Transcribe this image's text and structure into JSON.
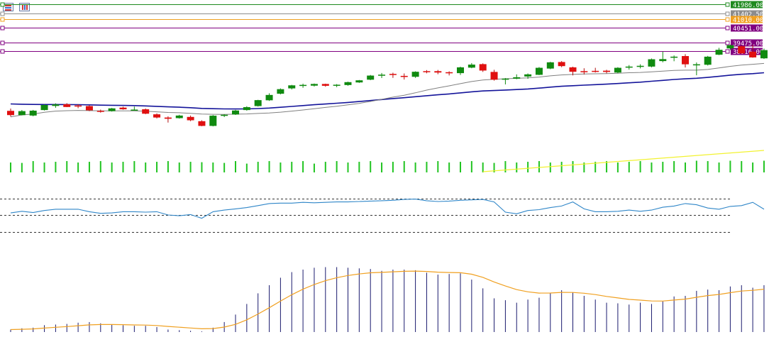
{
  "toolbar": {
    "icons": [
      "list-icon",
      "bars-icon"
    ]
  },
  "chart_data": {
    "type": "candlestick",
    "price_lines": [
      {
        "label": "41986.00",
        "value": 41986,
        "color": "#1e8a1e"
      },
      {
        "label": "41402.50",
        "value": 41402.5,
        "color": "#8c8c8c"
      },
      {
        "label": "41010.00",
        "value": 41010,
        "color": "#f0a020"
      },
      {
        "label": "40451.00",
        "value": 40451,
        "color": "#800080"
      },
      {
        "label": "39475.00",
        "value": 39475,
        "color": "#800080"
      },
      {
        "label": "38916.00",
        "value": 38916,
        "color": "#800080"
      }
    ],
    "candles": [
      [
        34998,
        35150,
        34620,
        34720
      ],
      [
        34720,
        35050,
        34700,
        34980
      ],
      [
        34690,
        35060,
        34640,
        35010
      ],
      [
        35050,
        35420,
        35020,
        35380
      ],
      [
        35320,
        35490,
        35200,
        35420
      ],
      [
        35430,
        35500,
        35240,
        35250
      ],
      [
        35350,
        35430,
        35170,
        35280
      ],
      [
        35310,
        35370,
        34980,
        35030
      ],
      [
        35000,
        35080,
        34880,
        34950
      ],
      [
        34980,
        35190,
        34950,
        35160
      ],
      [
        35210,
        35270,
        35070,
        35100
      ],
      [
        35080,
        35280,
        35020,
        35080
      ],
      [
        35100,
        35150,
        34780,
        34810
      ],
      [
        34770,
        34830,
        34500,
        34560
      ],
      [
        34560,
        34640,
        34230,
        34480
      ],
      [
        34520,
        34740,
        34490,
        34690
      ],
      [
        34600,
        34690,
        34320,
        34380
      ],
      [
        34320,
        34380,
        33990,
        34010
      ],
      [
        34010,
        34720,
        33980,
        34680
      ],
      [
        34690,
        34780,
        34590,
        34740
      ],
      [
        34760,
        35060,
        34730,
        35020
      ],
      [
        35050,
        35300,
        35010,
        35240
      ],
      [
        35310,
        35720,
        35280,
        35700
      ],
      [
        35690,
        36150,
        35650,
        36040
      ],
      [
        36120,
        36470,
        36080,
        36420
      ],
      [
        36470,
        36700,
        36400,
        36670
      ],
      [
        36640,
        36780,
        36510,
        36700
      ],
      [
        36650,
        36790,
        36590,
        36760
      ],
      [
        36760,
        36780,
        36580,
        36640
      ],
      [
        36640,
        36750,
        36550,
        36710
      ],
      [
        36690,
        36910,
        36640,
        36880
      ],
      [
        36860,
        37020,
        36830,
        37000
      ],
      [
        37040,
        37350,
        37010,
        37310
      ],
      [
        37330,
        37480,
        37150,
        37370
      ],
      [
        37420,
        37500,
        37160,
        37350
      ],
      [
        37290,
        37450,
        37050,
        37220
      ],
      [
        37230,
        37590,
        37160,
        37560
      ],
      [
        37600,
        37670,
        37460,
        37580
      ],
      [
        37600,
        37680,
        37400,
        37510
      ],
      [
        37530,
        37590,
        37320,
        37490
      ],
      [
        37470,
        37890,
        37350,
        37850
      ],
      [
        37830,
        38130,
        37790,
        38030
      ],
      [
        38060,
        38110,
        37550,
        37640
      ],
      [
        37550,
        37690,
        36980,
        37040
      ],
      [
        37040,
        37150,
        36730,
        37110
      ],
      [
        37110,
        37390,
        37070,
        37200
      ],
      [
        37250,
        37450,
        37100,
        37390
      ],
      [
        37360,
        37870,
        37340,
        37820
      ],
      [
        37770,
        38210,
        37730,
        38180
      ],
      [
        38200,
        38260,
        37860,
        37930
      ],
      [
        37850,
        37890,
        37320,
        37560
      ],
      [
        37600,
        37790,
        37380,
        37580
      ],
      [
        37620,
        37820,
        37510,
        37580
      ],
      [
        37630,
        37690,
        37460,
        37550
      ],
      [
        37510,
        37860,
        37470,
        37820
      ],
      [
        37830,
        38000,
        37700,
        37900
      ],
      [
        37920,
        38050,
        37780,
        37950
      ],
      [
        37900,
        38430,
        37850,
        38380
      ],
      [
        38260,
        38880,
        38180,
        38390
      ],
      [
        38510,
        38630,
        38250,
        38550
      ],
      [
        38590,
        38710,
        37840,
        38050
      ],
      [
        38020,
        38170,
        37330,
        38050
      ],
      [
        38020,
        38600,
        37970,
        38550
      ],
      [
        38680,
        39130,
        38650,
        39000
      ],
      [
        39090,
        39340,
        38990,
        39300
      ],
      [
        39230,
        39280,
        38750,
        38760
      ],
      [
        38880,
        39320,
        38480,
        38500
      ],
      [
        38440,
        39080,
        38400,
        38980
      ]
    ],
    "indicator_values": {
      "volume": [
        9,
        8,
        9,
        9,
        9,
        9,
        9,
        9,
        9,
        9,
        9,
        9,
        9,
        9,
        9,
        9,
        9,
        8,
        9,
        8,
        9,
        8,
        9,
        9,
        9,
        9,
        9,
        8,
        9,
        9,
        9,
        9,
        9,
        9,
        9,
        9,
        9,
        9,
        9,
        9,
        9,
        9,
        9,
        8,
        9,
        9,
        9,
        9,
        9,
        9,
        9,
        9,
        9,
        9,
        9,
        9,
        9,
        9,
        9,
        9,
        9,
        10,
        9,
        9,
        10,
        9,
        9,
        10
      ],
      "rsi": [
        35,
        39,
        36,
        41,
        44,
        44,
        44,
        38,
        34,
        35,
        38,
        38,
        37,
        38,
        30,
        28,
        31,
        22,
        38,
        42,
        45,
        48,
        53,
        58,
        59,
        59,
        61,
        60,
        61,
        62,
        62,
        63,
        64,
        65,
        66,
        68,
        69,
        65,
        63,
        64,
        66,
        67,
        68,
        62,
        37,
        33,
        41,
        43,
        48,
        52,
        62,
        45,
        38,
        38,
        39,
        42,
        39,
        42,
        49,
        52,
        58,
        55,
        47,
        44,
        51,
        53,
        61,
        44
      ],
      "macd": [
        -4,
        -6,
        -7,
        -11,
        -12,
        -13,
        -15,
        -16,
        -14,
        -12,
        -11,
        -10,
        -10,
        -8,
        -4,
        -3,
        -2,
        -1,
        -7,
        -16,
        -28,
        -45,
        -62,
        -75,
        -87,
        -96,
        -100,
        -103,
        -104,
        -104,
        -103,
        -102,
        -101,
        -98,
        -100,
        -100,
        -99,
        -95,
        -92,
        -93,
        -94,
        -84,
        -70,
        -54,
        -51,
        -47,
        -52,
        -55,
        -63,
        -67,
        -63,
        -58,
        -52,
        -47,
        -46,
        -44,
        -47,
        -45,
        -49,
        -57,
        -58,
        -66,
        -68,
        -67,
        -73,
        -75,
        -71,
        -75
      ]
    }
  }
}
